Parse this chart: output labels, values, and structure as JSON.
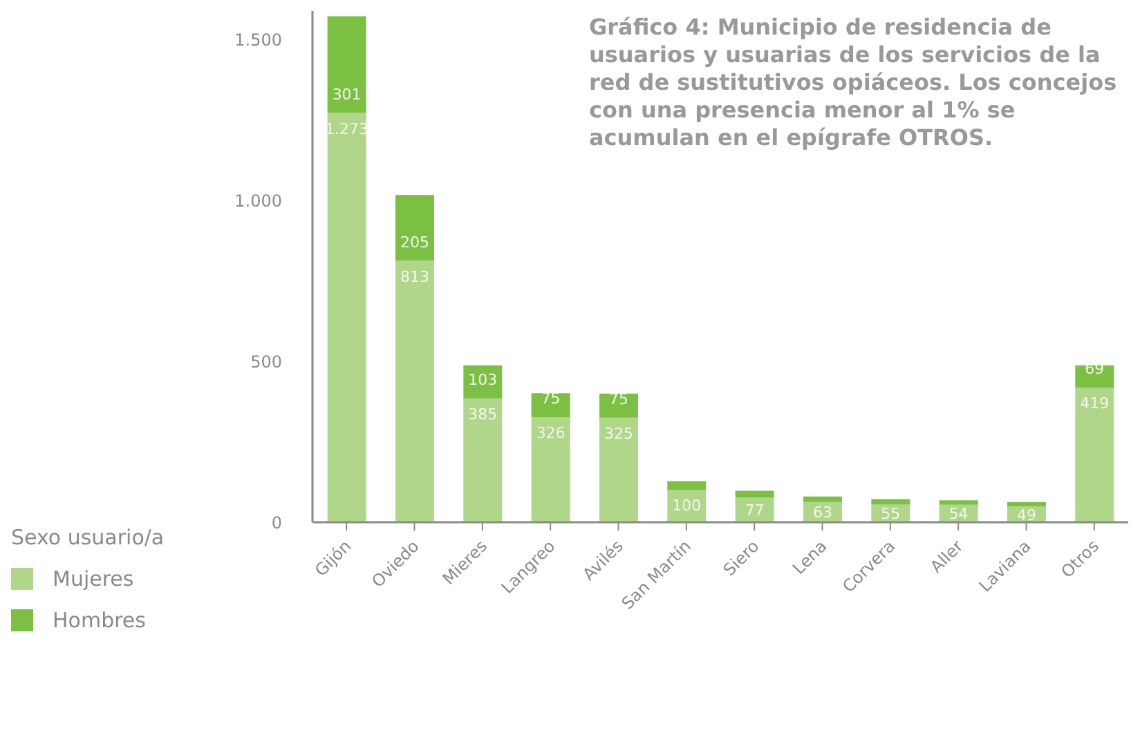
{
  "chart_data": {
    "type": "bar",
    "title": "Gráfico 4: Municipio de residencia de usuarios y usuarias de los servicios de la red de sustitutivos opiáceos. Los concejos con una presencia menor al 1% se acumulan en el epígrafe OTROS.",
    "legend_title": "Sexo usuario/a",
    "categories": [
      "Gijón",
      "Oviedo",
      "Mieres",
      "Langreo",
      "Avilés",
      "San Martín",
      "Siero",
      "Lena",
      "Corvera",
      "Aller",
      "Laviana",
      "Otros"
    ],
    "stacked": true,
    "series": [
      {
        "name": "Mujeres",
        "color": "#b0d68a",
        "values": [
          1273,
          813,
          385,
          326,
          325,
          100,
          77,
          63,
          55,
          54,
          49,
          419
        ],
        "value_labels": [
          "1.273",
          "813",
          "385",
          "326",
          "325",
          "100",
          "77",
          "63",
          "55",
          "54",
          "49",
          "419"
        ]
      },
      {
        "name": "Hombres",
        "color": "#7bc043",
        "values": [
          301,
          205,
          103,
          75,
          75,
          28,
          21,
          17,
          17,
          14,
          14,
          69
        ],
        "value_labels": [
          "301",
          "205",
          "103",
          "75",
          "75",
          null,
          null,
          null,
          null,
          null,
          null,
          "69"
        ]
      }
    ],
    "ylim": [
      0,
      1590
    ],
    "yticks": [
      0,
      {
        "value": 500,
        "label": "500"
      },
      {
        "value": 1000,
        "label": "1.000"
      },
      {
        "value": 1500,
        "label": "1.500"
      }
    ],
    "grid": false,
    "legend": "bottom left"
  }
}
